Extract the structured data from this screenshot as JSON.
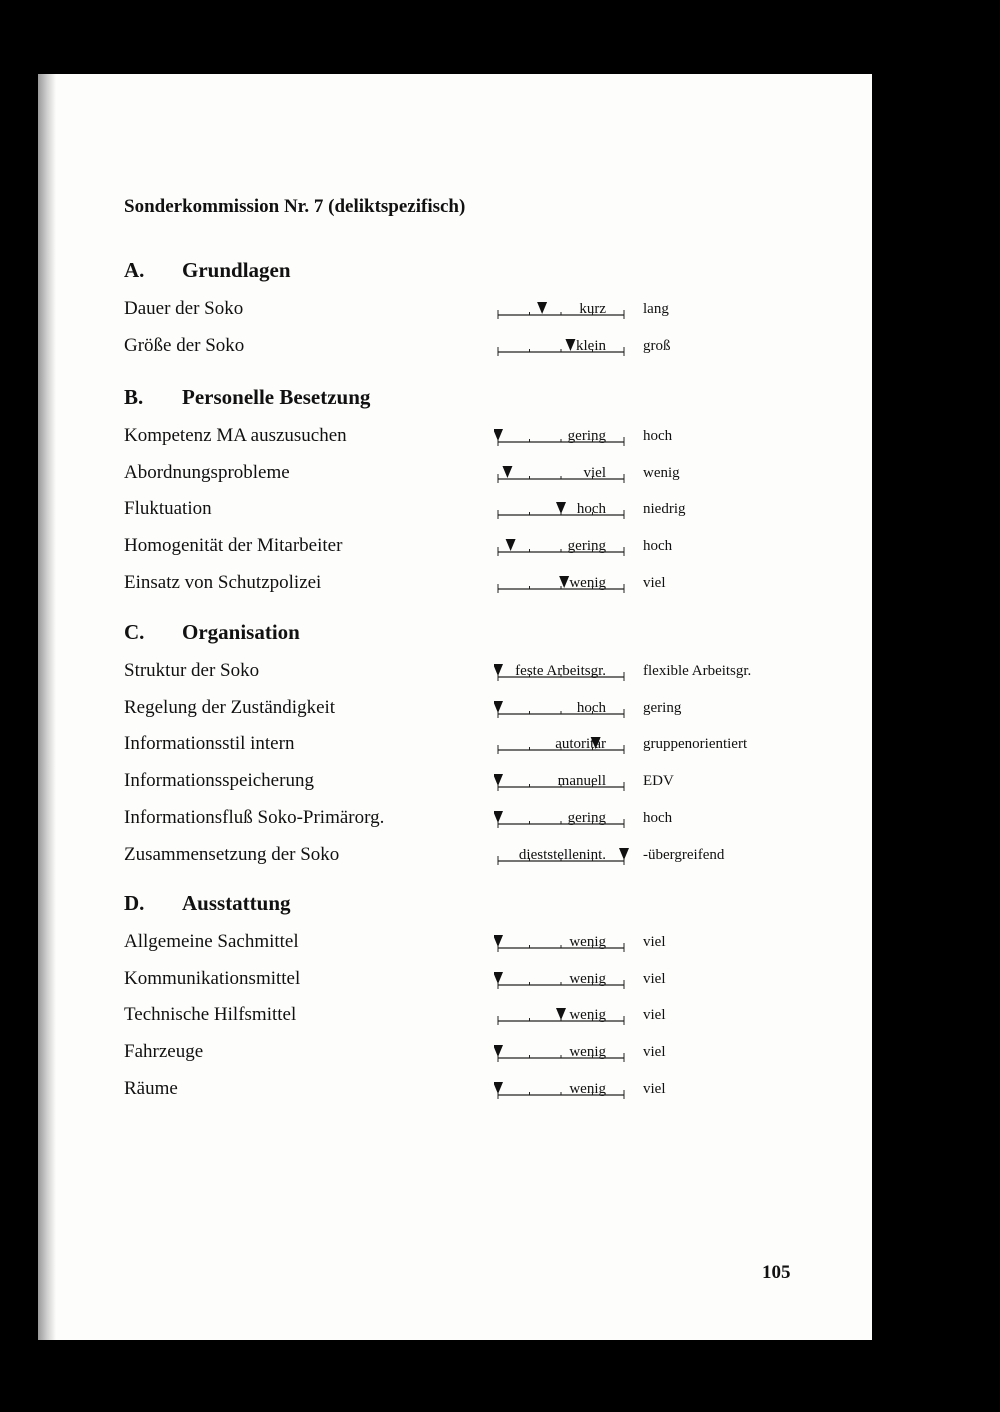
{
  "title": "Sonderkommission  Nr. 7 (deliktspezifisch)",
  "scale": {
    "min": 1,
    "max": 5
  },
  "sections": [
    {
      "letter": "A.",
      "heading": "Grundlagen",
      "items": [
        {
          "label": "Dauer der Soko",
          "low": "kurz",
          "high": "lang",
          "value": 2.4
        },
        {
          "label": "Größe der Soko",
          "low": "klein",
          "high": "groß",
          "value": 3.3
        }
      ]
    },
    {
      "letter": "B.",
      "heading": "Personelle Besetzung",
      "items": [
        {
          "label": "Kompetenz MA auszusuchen",
          "low": "gering",
          "high": "hoch",
          "value": 1
        },
        {
          "label": "Abordnungsprobleme",
          "low": "viel",
          "high": "wenig",
          "value": 1.3
        },
        {
          "label": "Fluktuation",
          "low": "hoch",
          "high": "niedrig",
          "value": 3
        },
        {
          "label": "Homogenität der Mitarbeiter",
          "low": "gering",
          "high": "hoch",
          "value": 1.4
        },
        {
          "label": "Einsatz von Schutzpolizei",
          "low": "wenig",
          "high": "viel",
          "value": 3.1
        }
      ]
    },
    {
      "letter": "C.",
      "heading": "Organisation",
      "items": [
        {
          "label": "Struktur der Soko",
          "low": "feste Arbeitsgr.",
          "high": "flexible Arbeitsgr.",
          "value": 1
        },
        {
          "label": "Regelung der Zuständigkeit",
          "low": "hoch",
          "high": "gering",
          "value": 1
        },
        {
          "label": "Informationsstil intern",
          "low": "autoritär",
          "high": "gruppenorientiert",
          "value": 4.1
        },
        {
          "label": "Informationsspeicherung",
          "low": "manuell",
          "high": "EDV",
          "value": 1
        },
        {
          "label": "Informationsfluß Soko-Primärorg.",
          "low": "gering",
          "high": "hoch",
          "value": 1
        },
        {
          "label": "Zusammensetzung der Soko",
          "low": "dieststellenint.",
          "high": "-übergreifend",
          "value": 5
        }
      ]
    },
    {
      "letter": "D.",
      "heading": "Ausstattung",
      "items": [
        {
          "label": "Allgemeine Sachmittel",
          "low": "wenig",
          "high": "viel",
          "value": 1
        },
        {
          "label": "Kommunikationsmittel",
          "low": "wenig",
          "high": "viel",
          "value": 1
        },
        {
          "label": "Technische Hilfsmittel",
          "low": "wenig",
          "high": "viel",
          "value": 3
        },
        {
          "label": "Fahrzeuge",
          "low": "wenig",
          "high": "viel",
          "value": 1
        },
        {
          "label": "Räume",
          "low": "wenig",
          "high": "viel",
          "value": 1
        }
      ]
    }
  ],
  "page_number": "105"
}
